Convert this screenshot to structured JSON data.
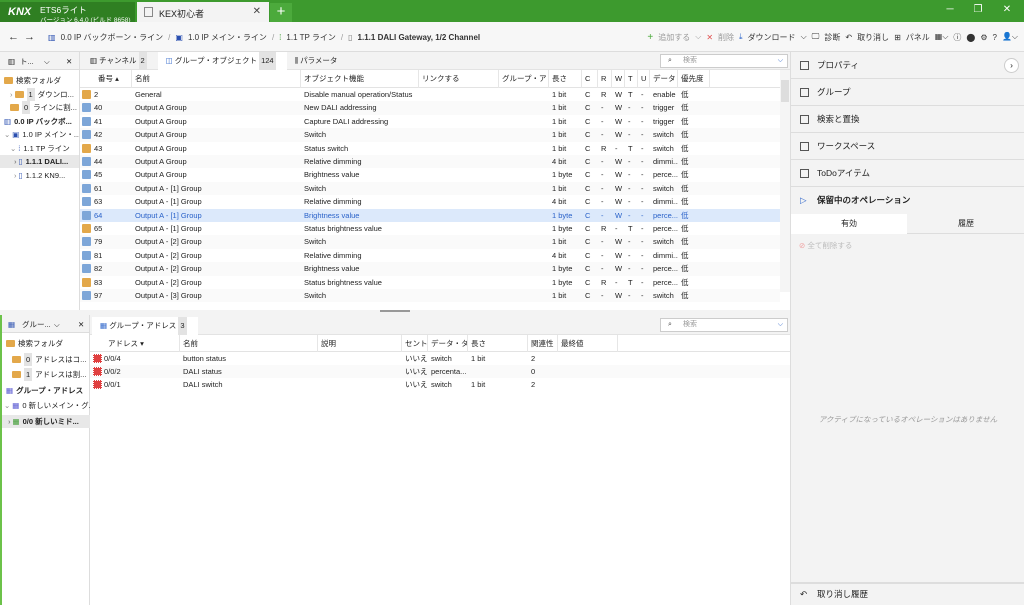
{
  "app": {
    "logo": "KNX",
    "name": "ETS6ライト",
    "version": "バージョン 6.4.0 (ビルド 8658)"
  },
  "tabs": {
    "project": "KEX初心者",
    "close": "✕",
    "add": "+"
  },
  "window": {
    "minimize": "─",
    "restore": "❐",
    "close": "✕"
  },
  "breadcrumb": [
    "0.0 IP バックボーン・ライン",
    "1.0 IP メイン・ライン",
    "1.1 TP ライン",
    "1.1.1 DALI Gateway, 1/2 Channel"
  ],
  "toolbar": {
    "add": "追加する",
    "delete": "削除",
    "download": "ダウンロード",
    "diagnose": "診断",
    "undo": "取り消し",
    "panel": "パネル"
  },
  "left_top": {
    "title": "ト...",
    "items": [
      {
        "label": "検索フォルダ"
      },
      {
        "count": "1",
        "label": "ダウンロ..."
      },
      {
        "count": "0",
        "label": "ラインに割..."
      },
      {
        "label": "0.0 IP バックボ..."
      },
      {
        "label": "1.0 IP メイン・..."
      },
      {
        "label": "1.1 TP ライン"
      },
      {
        "label": "1.1.1 DALI..."
      },
      {
        "label": "1.1.2 KN9..."
      }
    ]
  },
  "main": {
    "tabs": [
      {
        "label": "チャンネル",
        "count": "2"
      },
      {
        "label": "グループ・オブジェクト",
        "count": "124"
      },
      {
        "label": "パラメータ"
      }
    ],
    "search_placeholder": "検索",
    "columns": [
      "番号 ▴",
      "名前",
      "オブジェクト機能",
      "リンクする",
      "グループ・アドレス",
      "長さ",
      "C",
      "R",
      "W",
      "T",
      "U",
      "データ・タイプ",
      "優先度"
    ],
    "rows": [
      [
        "2",
        "General",
        "Disable manual operation/Status",
        "",
        "",
        "1 bit",
        "C",
        "R",
        "W",
        "T",
        "-",
        "enable",
        "低"
      ],
      [
        "40",
        "Output A Group",
        "New DALI addressing",
        "",
        "",
        "1 bit",
        "C",
        "-",
        "W",
        "-",
        "-",
        "trigger",
        "低"
      ],
      [
        "41",
        "Output A Group",
        "Capture DALI addressing",
        "",
        "",
        "1 bit",
        "C",
        "-",
        "W",
        "-",
        "-",
        "trigger",
        "低"
      ],
      [
        "42",
        "Output A Group",
        "Switch",
        "",
        "",
        "1 bit",
        "C",
        "-",
        "W",
        "-",
        "-",
        "switch",
        "低"
      ],
      [
        "43",
        "Output A Group",
        "Status switch",
        "",
        "",
        "1 bit",
        "C",
        "R",
        "-",
        "T",
        "-",
        "switch",
        "低"
      ],
      [
        "44",
        "Output A Group",
        "Relative dimming",
        "",
        "",
        "4 bit",
        "C",
        "-",
        "W",
        "-",
        "-",
        "dimmi...",
        "低"
      ],
      [
        "45",
        "Output A Group",
        "Brightness value",
        "",
        "",
        "1 byte",
        "C",
        "-",
        "W",
        "-",
        "-",
        "perce...",
        "低"
      ],
      [
        "61",
        "Output A - [1] Group",
        "Switch",
        "",
        "",
        "1 bit",
        "C",
        "-",
        "W",
        "-",
        "-",
        "switch",
        "低"
      ],
      [
        "63",
        "Output A - [1] Group",
        "Relative dimming",
        "",
        "",
        "4 bit",
        "C",
        "-",
        "W",
        "-",
        "-",
        "dimmi...",
        "低"
      ],
      [
        "64",
        "Output A - [1] Group",
        "Brightness value",
        "",
        "",
        "1 byte",
        "C",
        "-",
        "W",
        "-",
        "-",
        "perce...",
        "低"
      ],
      [
        "65",
        "Output A - [1] Group",
        "Status brightness value",
        "",
        "",
        "1 byte",
        "C",
        "R",
        "-",
        "T",
        "-",
        "perce...",
        "低"
      ],
      [
        "79",
        "Output A - [2] Group",
        "Switch",
        "",
        "",
        "1 bit",
        "C",
        "-",
        "W",
        "-",
        "-",
        "switch",
        "低"
      ],
      [
        "81",
        "Output A - [2] Group",
        "Relative dimming",
        "",
        "",
        "4 bit",
        "C",
        "-",
        "W",
        "-",
        "-",
        "dimmi...",
        "低"
      ],
      [
        "82",
        "Output A - [2] Group",
        "Brightness value",
        "",
        "",
        "1 byte",
        "C",
        "-",
        "W",
        "-",
        "-",
        "perce...",
        "低"
      ],
      [
        "83",
        "Output A - [2] Group",
        "Status brightness value",
        "",
        "",
        "1 byte",
        "C",
        "R",
        "-",
        "T",
        "-",
        "perce...",
        "低"
      ],
      [
        "97",
        "Output A - [3] Group",
        "Switch",
        "",
        "",
        "1 bit",
        "C",
        "-",
        "W",
        "-",
        "-",
        "switch",
        "低"
      ]
    ],
    "selected_row": "64",
    "status_rows": [
      "2",
      "43",
      "65",
      "83"
    ]
  },
  "left_bottom": {
    "title": "グルー...",
    "items": [
      {
        "label": "検索フォルダ"
      },
      {
        "count": "0",
        "label": "アドレスはコ..."
      },
      {
        "count": "1",
        "label": "アドレスは割..."
      },
      {
        "label": "グループ・アドレス"
      },
      {
        "label": "0 新しいメイン・グ..."
      },
      {
        "label": "0/0 新しいミド..."
      }
    ]
  },
  "bottom": {
    "tab": {
      "label": "グループ・アドレス",
      "count": "3"
    },
    "search_placeholder": "検索",
    "columns": [
      "アドレス ▾",
      "名前",
      "説明",
      "セントラル",
      "データ・タイプ",
      "長さ",
      "関連性",
      "最終値"
    ],
    "rows": [
      [
        "0/0/4",
        "button status",
        "",
        "いいえ",
        "switch",
        "1 bit",
        "2",
        ""
      ],
      [
        "0/0/2",
        "DALI status",
        "",
        "いいえ",
        "percenta...",
        "",
        "0",
        ""
      ],
      [
        "0/0/1",
        "DALI switch",
        "",
        "いいえ",
        "switch",
        "1 bit",
        "2",
        ""
      ]
    ]
  },
  "right": {
    "sections": [
      "プロパティ",
      "グループ",
      "検索と置換",
      "ワークスペース",
      "ToDoアイテム"
    ],
    "pending": "保留中のオペレーション",
    "tabs": [
      "有効",
      "履歴"
    ],
    "delete_all": "全て削除する",
    "empty": "アクティブになっているオペレーションはありません",
    "undo_history": "取り消し履歴"
  },
  "colors": {
    "brand": "#3d9a2e",
    "selection": "#dce9fb",
    "accent": "#2a62c9"
  }
}
